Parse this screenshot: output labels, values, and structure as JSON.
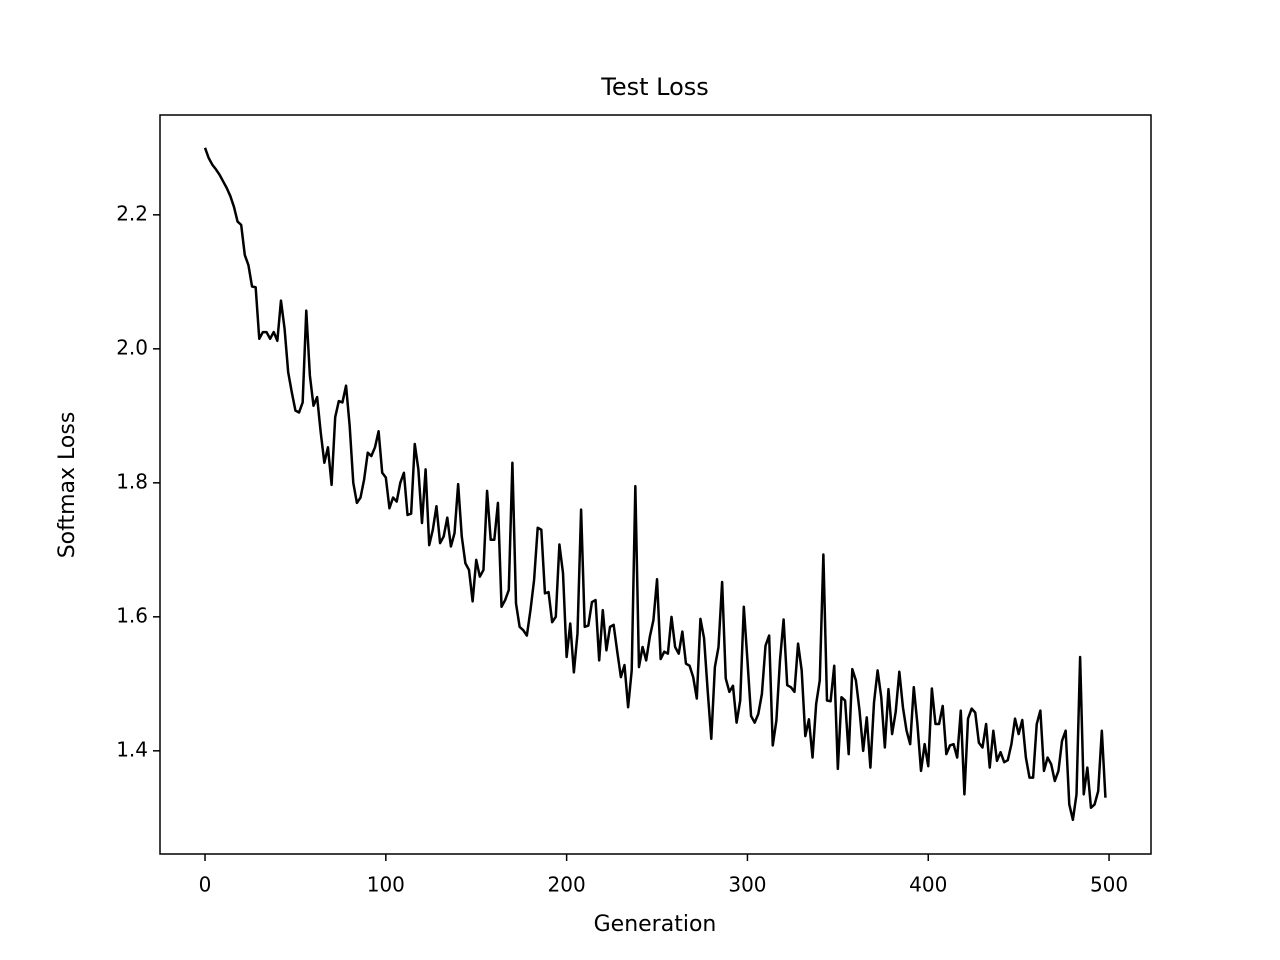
{
  "chart_data": {
    "type": "line",
    "title": "Test Loss",
    "x_label": "Generation",
    "y_label": "Softmax Loss",
    "x": [
      0,
      2,
      4,
      6,
      8,
      10,
      12,
      14,
      16,
      18,
      20,
      22,
      24,
      26,
      28,
      30,
      32,
      34,
      36,
      38,
      40,
      42,
      44,
      46,
      48,
      50,
      52,
      54,
      56,
      58,
      60,
      62,
      64,
      66,
      68,
      70,
      72,
      74,
      76,
      78,
      80,
      82,
      84,
      86,
      88,
      90,
      92,
      94,
      96,
      98,
      100,
      102,
      104,
      106,
      108,
      110,
      112,
      114,
      116,
      118,
      120,
      122,
      124,
      126,
      128,
      130,
      132,
      134,
      136,
      138,
      140,
      142,
      144,
      146,
      148,
      150,
      152,
      154,
      156,
      158,
      160,
      162,
      164,
      166,
      168,
      170,
      172,
      174,
      176,
      178,
      180,
      182,
      184,
      186,
      188,
      190,
      192,
      194,
      196,
      198,
      200,
      202,
      204,
      206,
      208,
      210,
      212,
      214,
      216,
      218,
      220,
      222,
      224,
      226,
      228,
      230,
      232,
      234,
      236,
      238,
      240,
      242,
      244,
      246,
      248,
      250,
      252,
      254,
      256,
      258,
      260,
      262,
      264,
      266,
      268,
      270,
      272,
      274,
      276,
      278,
      280,
      282,
      284,
      286,
      288,
      290,
      292,
      294,
      296,
      298,
      300,
      302,
      304,
      306,
      308,
      310,
      312,
      314,
      316,
      318,
      320,
      322,
      324,
      326,
      328,
      330,
      332,
      334,
      336,
      338,
      340,
      342,
      344,
      346,
      348,
      350,
      352,
      354,
      356,
      358,
      360,
      362,
      364,
      366,
      368,
      370,
      372,
      374,
      376,
      378,
      380,
      382,
      384,
      386,
      388,
      390,
      392,
      394,
      396,
      398,
      400,
      402,
      404,
      406,
      408,
      410,
      412,
      414,
      416,
      418,
      420,
      422,
      424,
      426,
      428,
      430,
      432,
      434,
      436,
      438,
      440,
      442,
      444,
      446,
      448,
      450,
      452,
      454,
      456,
      458,
      460,
      462,
      464,
      466,
      468,
      470,
      472,
      474,
      476,
      478,
      480,
      482,
      484,
      486,
      488,
      490,
      492,
      494,
      496,
      498
    ],
    "series": [
      {
        "name": "Test Loss",
        "color": "#000000",
        "values": [
          2.3,
          2.285,
          2.275,
          2.268,
          2.26,
          2.25,
          2.24,
          2.228,
          2.212,
          2.19,
          2.185,
          2.14,
          2.125,
          2.093,
          2.092,
          2.015,
          2.025,
          2.025,
          2.015,
          2.025,
          2.012,
          2.072,
          2.03,
          1.965,
          1.935,
          1.908,
          1.905,
          1.92,
          2.057,
          1.96,
          1.915,
          1.928,
          1.875,
          1.83,
          1.853,
          1.797,
          1.898,
          1.922,
          1.92,
          1.945,
          1.885,
          1.8,
          1.77,
          1.778,
          1.805,
          1.845,
          1.84,
          1.853,
          1.877,
          1.815,
          1.808,
          1.762,
          1.778,
          1.772,
          1.8,
          1.815,
          1.752,
          1.754,
          1.858,
          1.82,
          1.74,
          1.82,
          1.707,
          1.73,
          1.765,
          1.71,
          1.72,
          1.748,
          1.705,
          1.725,
          1.798,
          1.72,
          1.68,
          1.67,
          1.623,
          1.685,
          1.66,
          1.67,
          1.788,
          1.715,
          1.715,
          1.77,
          1.615,
          1.625,
          1.64,
          1.83,
          1.62,
          1.585,
          1.58,
          1.572,
          1.61,
          1.655,
          1.733,
          1.73,
          1.635,
          1.637,
          1.592,
          1.6,
          1.708,
          1.665,
          1.54,
          1.59,
          1.517,
          1.575,
          1.76,
          1.585,
          1.587,
          1.622,
          1.625,
          1.535,
          1.61,
          1.55,
          1.585,
          1.588,
          1.548,
          1.51,
          1.528,
          1.465,
          1.52,
          1.795,
          1.525,
          1.555,
          1.535,
          1.57,
          1.595,
          1.656,
          1.537,
          1.548,
          1.545,
          1.6,
          1.555,
          1.545,
          1.578,
          1.53,
          1.527,
          1.51,
          1.478,
          1.597,
          1.568,
          1.49,
          1.418,
          1.525,
          1.555,
          1.652,
          1.508,
          1.488,
          1.497,
          1.442,
          1.475,
          1.615,
          1.535,
          1.452,
          1.442,
          1.455,
          1.485,
          1.557,
          1.572,
          1.408,
          1.445,
          1.535,
          1.596,
          1.498,
          1.495,
          1.488,
          1.56,
          1.52,
          1.422,
          1.447,
          1.39,
          1.47,
          1.505,
          1.693,
          1.475,
          1.474,
          1.527,
          1.373,
          1.48,
          1.475,
          1.395,
          1.522,
          1.505,
          1.46,
          1.4,
          1.45,
          1.375,
          1.472,
          1.52,
          1.48,
          1.405,
          1.492,
          1.425,
          1.458,
          1.518,
          1.465,
          1.43,
          1.41,
          1.495,
          1.44,
          1.37,
          1.41,
          1.377,
          1.493,
          1.44,
          1.44,
          1.467,
          1.395,
          1.408,
          1.41,
          1.39,
          1.46,
          1.335,
          1.448,
          1.463,
          1.457,
          1.412,
          1.405,
          1.44,
          1.375,
          1.43,
          1.385,
          1.398,
          1.383,
          1.386,
          1.41,
          1.448,
          1.425,
          1.446,
          1.39,
          1.36,
          1.36,
          1.44,
          1.46,
          1.37,
          1.39,
          1.38,
          1.355,
          1.37,
          1.415,
          1.43,
          1.32,
          1.297,
          1.335,
          1.54,
          1.335,
          1.375,
          1.315,
          1.32,
          1.34,
          1.43,
          1.33
        ]
      }
    ],
    "xlim": [
      -24.9,
      523.2
    ],
    "ylim": [
      1.246,
      2.349
    ],
    "xticks": [
      0,
      100,
      200,
      300,
      400,
      500
    ],
    "yticks": [
      1.4,
      1.6,
      1.8,
      {
        "value": 2,
        "label": "2.0"
      },
      2.2
    ]
  }
}
